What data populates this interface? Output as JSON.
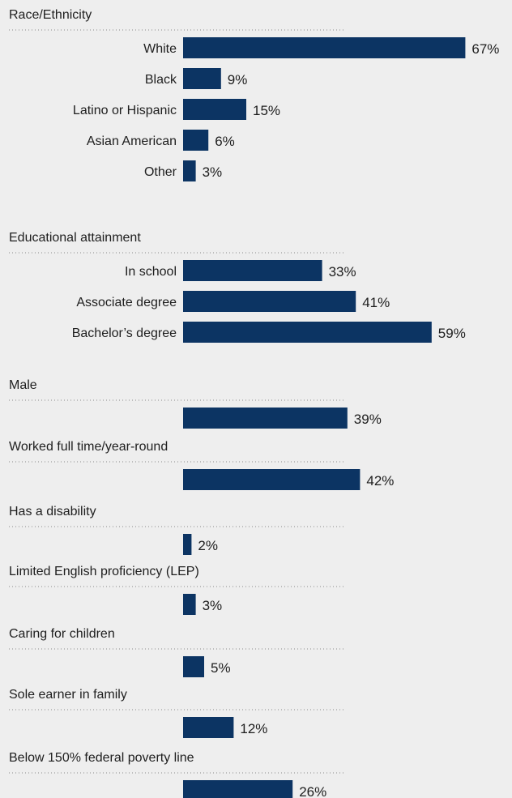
{
  "chart_data": {
    "type": "bar",
    "orientation": "horizontal",
    "unit": "%",
    "xlim": [
      0,
      100
    ],
    "bar_color": "#0c3463",
    "background": "#eeeeee",
    "groups": [
      {
        "heading": "Race/Ethnicity",
        "categories": [
          "White",
          "Black",
          "Latino or Hispanic",
          "Asian American",
          "Other"
        ],
        "values": [
          67,
          9,
          15,
          6,
          3
        ]
      },
      {
        "heading": "Educational attainment",
        "categories": [
          "In school",
          "Associate degree",
          "Bachelor’s degree"
        ],
        "values": [
          33,
          41,
          59
        ]
      },
      {
        "heading": "Male",
        "categories": [
          ""
        ],
        "values": [
          39
        ]
      },
      {
        "heading": "Worked full time/year-round",
        "categories": [
          ""
        ],
        "values": [
          42
        ]
      },
      {
        "heading": "Has a disability",
        "categories": [
          ""
        ],
        "values": [
          2
        ]
      },
      {
        "heading": "Limited English proficiency (LEP)",
        "categories": [
          ""
        ],
        "values": [
          3
        ]
      },
      {
        "heading": "Caring for children",
        "categories": [
          ""
        ],
        "values": [
          5
        ]
      },
      {
        "heading": "Sole earner in family",
        "categories": [
          ""
        ],
        "values": [
          12
        ]
      },
      {
        "heading": "Below 150% federal poverty line",
        "categories": [
          ""
        ],
        "values": [
          26
        ]
      }
    ]
  }
}
